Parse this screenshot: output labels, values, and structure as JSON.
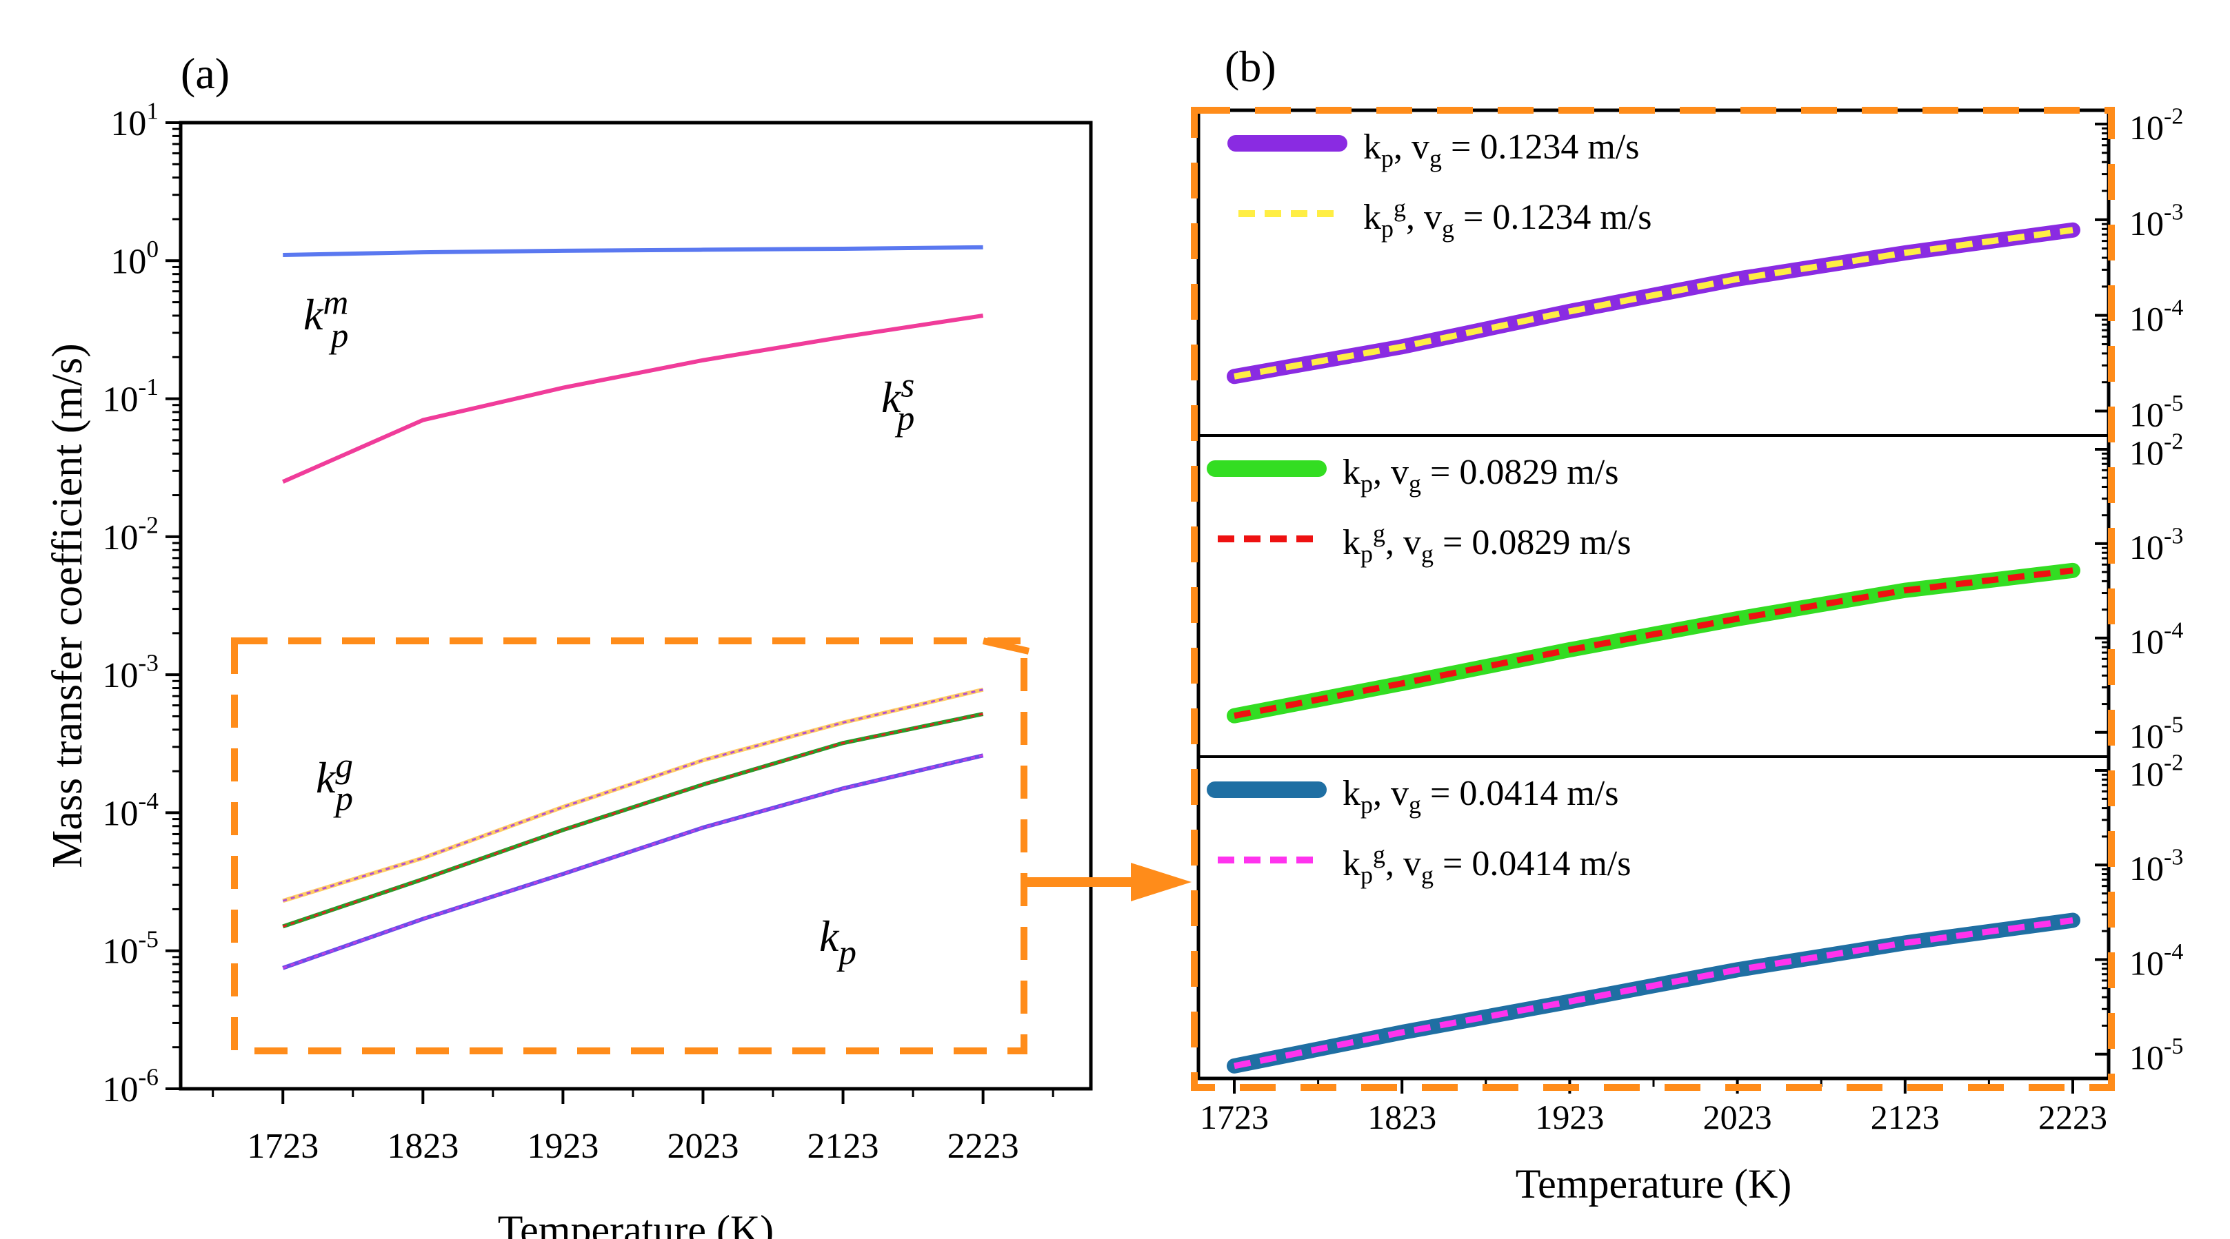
{
  "figure": {
    "panel_a_label": "(a)",
    "panel_b_label": "(b)"
  },
  "chart_data": [
    {
      "panel": "(a)",
      "type": "line",
      "xlabel": "Temperature (K)",
      "ylabel": "Mass transfer coefficient (m/s)",
      "yscale": "log",
      "ylim": [
        1e-06,
        10
      ],
      "xlim": [
        1650,
        2300
      ],
      "x_ticks": [
        "1723",
        "1823",
        "1923",
        "2023",
        "2123",
        "2223"
      ],
      "y_ticks": [
        {
          "base": "10",
          "exp": "1",
          "value": 10
        },
        {
          "base": "10",
          "exp": "0",
          "value": 1
        },
        {
          "base": "10",
          "exp": "-1",
          "value": 0.1
        },
        {
          "base": "10",
          "exp": "-2",
          "value": 0.01
        },
        {
          "base": "10",
          "exp": "-3",
          "value": 0.001
        },
        {
          "base": "10",
          "exp": "-4",
          "value": 0.0001
        },
        {
          "base": "10",
          "exp": "-5",
          "value": 1e-05
        },
        {
          "base": "10",
          "exp": "-6",
          "value": 1e-06
        }
      ],
      "x": [
        1723,
        1823,
        1923,
        2023,
        2123,
        2223
      ],
      "series": [
        {
          "key": "km",
          "color": "#5a78f0",
          "dash": "",
          "values": [
            1.1,
            1.15,
            1.18,
            1.2,
            1.22,
            1.25
          ]
        },
        {
          "key": "ks",
          "color": "#f03c9a",
          "dash": "",
          "values": [
            0.025,
            0.07,
            0.12,
            0.19,
            0.28,
            0.4
          ]
        },
        {
          "key": "kg1",
          "color": "#ffcc66",
          "dash": "",
          "values": [
            2.3e-05,
            4.7e-05,
            0.00011,
            0.00024,
            0.00045,
            0.00078
          ]
        },
        {
          "key": "kg2",
          "color": "#2a9b2a",
          "dash": "",
          "values": [
            1.5e-05,
            3.3e-05,
            7.5e-05,
            0.00016,
            0.00032,
            0.00052
          ]
        },
        {
          "key": "kg3",
          "color": "#6a4be8",
          "dash": "",
          "values": [
            7.5e-06,
            1.7e-05,
            3.6e-05,
            7.8e-05,
            0.00015,
            0.00026
          ]
        }
      ],
      "annotations": [
        {
          "id": "km",
          "base": "k",
          "sub": "p",
          "sup": "m"
        },
        {
          "id": "ks",
          "base": "k",
          "sub": "p",
          "sup": "s"
        },
        {
          "id": "kg",
          "base": "k",
          "sub": "p",
          "sup": "g"
        },
        {
          "id": "kp",
          "base": "k",
          "sub": "p",
          "sup": ""
        }
      ]
    },
    {
      "panel": "(b)",
      "type": "line",
      "xlabel": "Temperature (K)",
      "yscale": "log",
      "x_ticks": [
        "1723",
        "1823",
        "1923",
        "2023",
        "2123",
        "2223"
      ],
      "x": [
        1723,
        1823,
        1923,
        2023,
        2123,
        2223
      ],
      "y_tick_labels": [
        {
          "base": "10",
          "exp": "-2"
        },
        {
          "base": "10",
          "exp": "-3"
        },
        {
          "base": "10",
          "exp": "-4"
        },
        {
          "base": "10",
          "exp": "-5"
        }
      ],
      "subplots": [
        {
          "ylim": [
            7e-06,
            0.01
          ],
          "legend": [
            {
              "label_pre": "k",
              "sub": "p",
              "sup": "",
              "rest_pre": ", v",
              "rest_sub": "g",
              "rest_post": " = 0.1234 m/s"
            },
            {
              "label_pre": "k",
              "sub": "p",
              "sup": "g",
              "rest_pre": ", v",
              "rest_sub": "g",
              "rest_post": " = 0.1234 m/s"
            }
          ],
          "series": [
            {
              "name": "kp, vg = 0.1234 m/s",
              "color": "#8a2be2",
              "style": "solid-thick",
              "values": [
                2.3e-05,
                4.7e-05,
                0.00011,
                0.00024,
                0.00045,
                0.00078
              ]
            },
            {
              "name": "kpg, vg = 0.1234 m/s",
              "color": "#ffee44",
              "style": "dashed",
              "values": [
                2.3e-05,
                4.7e-05,
                0.00011,
                0.00024,
                0.00045,
                0.00078
              ]
            }
          ]
        },
        {
          "ylim": [
            7e-06,
            0.01
          ],
          "legend": [
            {
              "label_pre": "k",
              "sub": "p",
              "sup": "",
              "rest_pre": ", v",
              "rest_sub": "g",
              "rest_post": " = 0.0829 m/s"
            },
            {
              "label_pre": "k",
              "sub": "p",
              "sup": "g",
              "rest_pre": ", v",
              "rest_sub": "g",
              "rest_post": " = 0.0829 m/s"
            }
          ],
          "series": [
            {
              "name": "kp, vg = 0.0829 m/s",
              "color": "#33dd22",
              "style": "solid-thick",
              "values": [
                1.5e-05,
                3.3e-05,
                7.5e-05,
                0.00016,
                0.00032,
                0.00052
              ]
            },
            {
              "name": "kpg, vg = 0.0829 m/s",
              "color": "#ee1111",
              "style": "dashed",
              "values": [
                1.5e-05,
                3.3e-05,
                7.5e-05,
                0.00016,
                0.00032,
                0.00052
              ]
            }
          ]
        },
        {
          "ylim": [
            7e-06,
            0.01
          ],
          "legend": [
            {
              "label_pre": "k",
              "sub": "p",
              "sup": "",
              "rest_pre": ", v",
              "rest_sub": "g",
              "rest_post": " = 0.0414 m/s"
            },
            {
              "label_pre": "k",
              "sub": "p",
              "sup": "g",
              "rest_pre": ", v",
              "rest_sub": "g",
              "rest_post": " = 0.0414 m/s"
            }
          ],
          "series": [
            {
              "name": "kp, vg = 0.0414 m/s",
              "color": "#1f6fa3",
              "style": "solid-thick",
              "values": [
                7.5e-06,
                1.7e-05,
                3.6e-05,
                7.8e-05,
                0.00015,
                0.00026
              ]
            },
            {
              "name": "kpg, vg = 0.0414 m/s",
              "color": "#ff33ee",
              "style": "dashed",
              "values": [
                7.5e-06,
                1.7e-05,
                3.6e-05,
                7.8e-05,
                0.00015,
                0.00026
              ]
            }
          ]
        }
      ]
    }
  ],
  "colors": {
    "zoom_box": "#ff8c1a",
    "axis": "#000000"
  }
}
